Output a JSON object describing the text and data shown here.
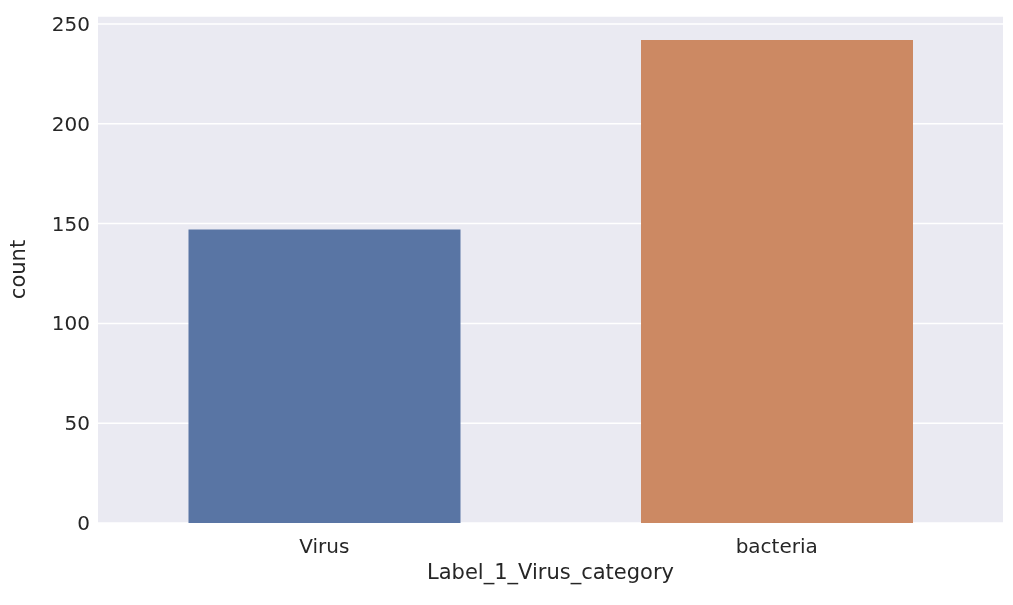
{
  "chart_data": {
    "type": "bar",
    "xlabel": "Label_1_Virus_category",
    "ylabel": "count",
    "categories": [
      "Virus",
      "bacteria"
    ],
    "values": [
      147,
      242
    ],
    "colors": [
      "#5975a4",
      "#cc8963"
    ],
    "ylim": [
      0,
      254
    ],
    "yticks": [
      0,
      50,
      100,
      150,
      200,
      250
    ],
    "grid": "y"
  }
}
